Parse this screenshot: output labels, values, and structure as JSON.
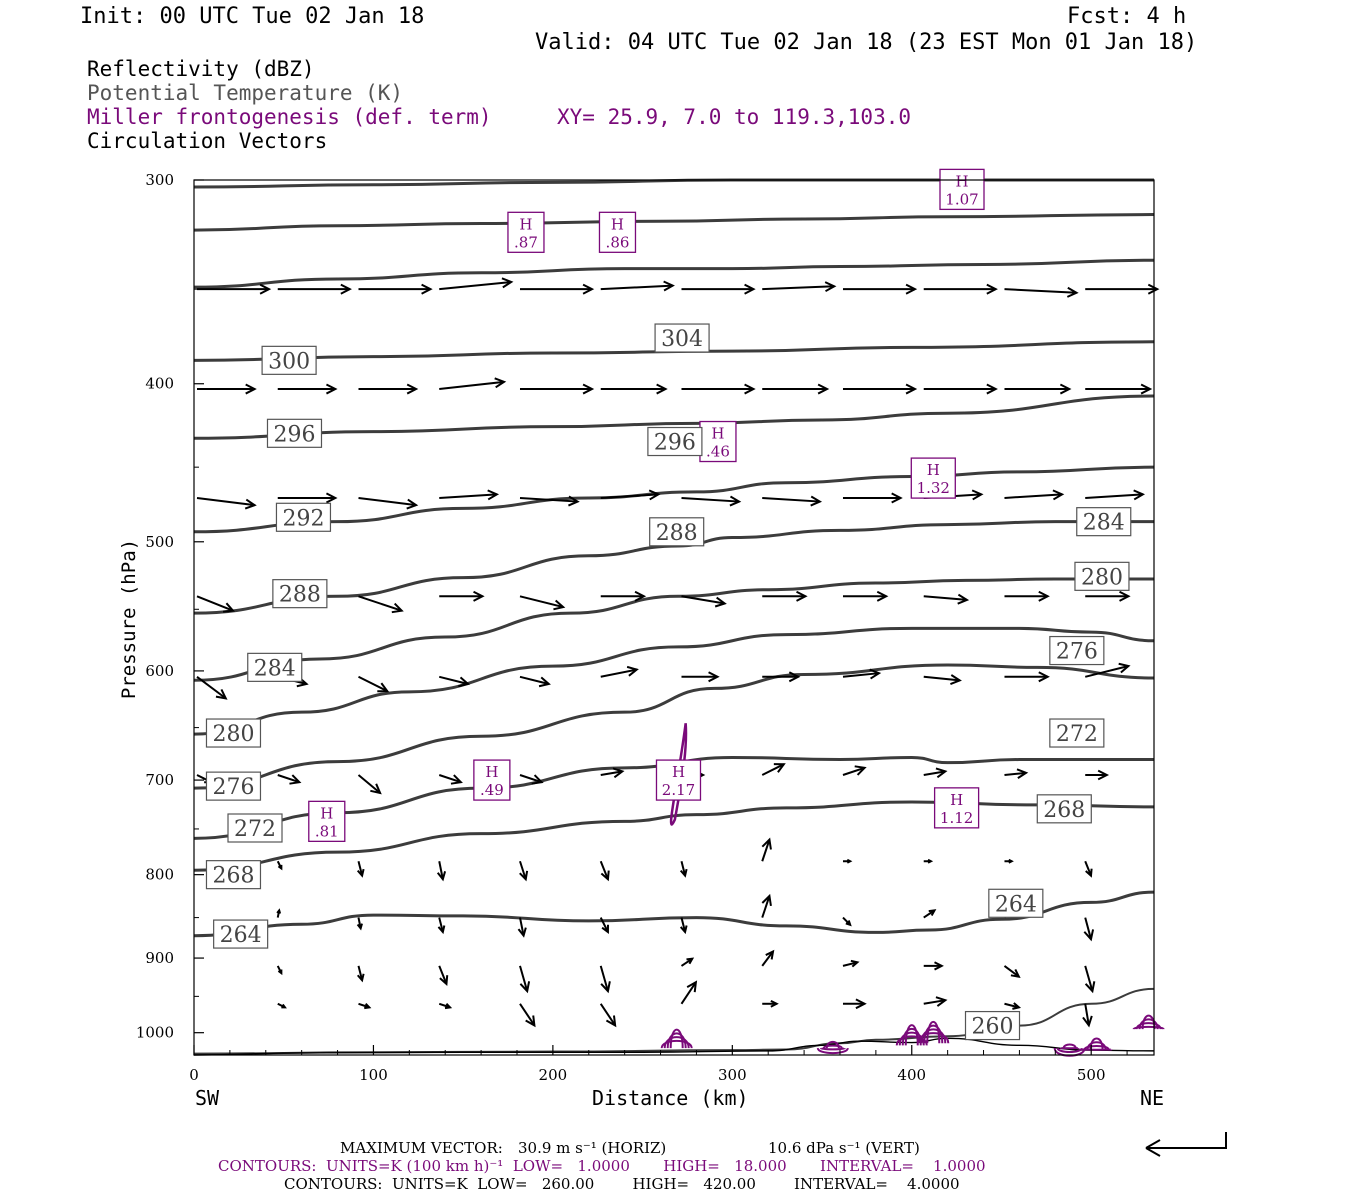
{
  "header": {
    "init": "Init: 00 UTC Tue 02 Jan 18",
    "fcst": "Fcst:    4 h",
    "valid": "Valid: 04 UTC Tue 02 Jan 18 (23 EST Mon 01 Jan 18)"
  },
  "legend": {
    "line1": "Reflectivity (dBZ)",
    "line2": "Potential Temperature (K)",
    "line3": "Miller frontogenesis (def. term)",
    "xy": "XY=  25.9,  7.0 to 119.3,103.0",
    "line4": "Circulation Vectors"
  },
  "colors": {
    "theta": "#3c3c3c",
    "fronto": "#7a0a7a",
    "vector": "#000000"
  },
  "chart_data": {
    "type": "cross-section",
    "xlabel": "Distance (km)",
    "ylabel": "Pressure (hPa)",
    "xlim": [
      0,
      535
    ],
    "ylim": [
      1032,
      300
    ],
    "y_scale": "log",
    "x_ticks": [
      0,
      100,
      200,
      300,
      400,
      500
    ],
    "y_ticks": [
      300,
      400,
      500,
      600,
      700,
      800,
      900,
      1000
    ],
    "x_end_labels": {
      "left": "SW",
      "right": "NE"
    },
    "theta_contours": [
      {
        "level": 304,
        "pts": [
          [
            0,
            303
          ],
          [
            100,
            302
          ],
          [
            200,
            301
          ],
          [
            300,
            300
          ],
          [
            400,
            300
          ],
          [
            535,
            300
          ]
        ]
      },
      {
        "level": 304,
        "pts": [
          [
            0,
            322
          ],
          [
            80,
            320
          ],
          [
            160,
            319
          ],
          [
            260,
            318
          ],
          [
            340,
            317
          ],
          [
            420,
            316
          ],
          [
            535,
            315
          ]
        ]
      },
      {
        "level": 300,
        "pts": [
          [
            0,
            349
          ],
          [
            80,
            345
          ],
          [
            160,
            342
          ],
          [
            240,
            340
          ],
          [
            300,
            340
          ],
          [
            360,
            339
          ],
          [
            440,
            338
          ],
          [
            535,
            336
          ]
        ]
      },
      {
        "level": 300,
        "pts": [
          [
            0,
            387
          ],
          [
            100,
            385
          ],
          [
            200,
            383
          ],
          [
            300,
            382
          ],
          [
            400,
            380
          ],
          [
            535,
            377
          ]
        ]
      },
      {
        "level": 296,
        "pts": [
          [
            0,
            432
          ],
          [
            100,
            428
          ],
          [
            200,
            425
          ],
          [
            280,
            423
          ],
          [
            350,
            421
          ],
          [
            420,
            417
          ],
          [
            535,
            407
          ]
        ]
      },
      {
        "level": 292,
        "pts": [
          [
            0,
            493
          ],
          [
            80,
            486
          ],
          [
            150,
            477
          ],
          [
            220,
            470
          ],
          [
            280,
            466
          ],
          [
            330,
            460
          ],
          [
            400,
            456
          ],
          [
            460,
            453
          ],
          [
            535,
            450
          ]
        ]
      },
      {
        "level": 288,
        "pts": [
          [
            0,
            553
          ],
          [
            80,
            540
          ],
          [
            150,
            526
          ],
          [
            220,
            510
          ],
          [
            270,
            503
          ],
          [
            300,
            497
          ],
          [
            360,
            492
          ],
          [
            420,
            488
          ],
          [
            480,
            486
          ],
          [
            535,
            486
          ]
        ]
      },
      {
        "level": 284,
        "pts": [
          [
            0,
            608
          ],
          [
            70,
            590
          ],
          [
            140,
            572
          ],
          [
            210,
            553
          ],
          [
            270,
            540
          ],
          [
            320,
            535
          ],
          [
            380,
            530
          ],
          [
            430,
            528
          ],
          [
            480,
            527
          ],
          [
            535,
            527
          ]
        ]
      },
      {
        "level": 280,
        "pts": [
          [
            0,
            656
          ],
          [
            60,
            636
          ],
          [
            120,
            618
          ],
          [
            200,
            596
          ],
          [
            270,
            580
          ],
          [
            330,
            570
          ],
          [
            400,
            565
          ],
          [
            460,
            565
          ],
          [
            500,
            568
          ],
          [
            535,
            575
          ]
        ]
      },
      {
        "level": 276,
        "pts": [
          [
            0,
            708
          ],
          [
            80,
            682
          ],
          [
            160,
            658
          ],
          [
            240,
            636
          ],
          [
            290,
            615
          ],
          [
            340,
            603
          ],
          [
            420,
            595
          ],
          [
            470,
            597
          ],
          [
            535,
            606
          ]
        ]
      },
      {
        "level": 272,
        "pts": [
          [
            0,
            760
          ],
          [
            80,
            733
          ],
          [
            160,
            708
          ],
          [
            240,
            688
          ],
          [
            300,
            678
          ],
          [
            360,
            680
          ],
          [
            400,
            678
          ],
          [
            420,
            683
          ],
          [
            460,
            680
          ],
          [
            535,
            680
          ]
        ]
      },
      {
        "level": 268,
        "pts": [
          [
            0,
            795
          ],
          [
            80,
            775
          ],
          [
            160,
            755
          ],
          [
            240,
            742
          ],
          [
            280,
            735
          ],
          [
            330,
            728
          ],
          [
            400,
            722
          ],
          [
            470,
            725
          ],
          [
            535,
            727
          ]
        ]
      },
      {
        "level": 264,
        "pts": [
          [
            0,
            872
          ],
          [
            60,
            858
          ],
          [
            100,
            847
          ],
          [
            150,
            848
          ],
          [
            220,
            854
          ],
          [
            280,
            850
          ],
          [
            330,
            860
          ],
          [
            380,
            868
          ],
          [
            410,
            865
          ],
          [
            450,
            852
          ],
          [
            500,
            832
          ],
          [
            535,
            820
          ]
        ]
      },
      {
        "level": 260,
        "pts": [
          [
            0,
            1030
          ],
          [
            100,
            1028
          ],
          [
            200,
            1027
          ],
          [
            300,
            1025
          ],
          [
            330,
            1024
          ],
          [
            360,
            1015
          ],
          [
            380,
            1010
          ],
          [
            420,
            1005
          ],
          [
            460,
            990
          ],
          [
            500,
            960
          ],
          [
            535,
            940
          ]
        ]
      }
    ],
    "theta_labels": [
      {
        "text": "300",
        "x": 53,
        "p": 387
      },
      {
        "text": "304",
        "x": 272,
        "p": 375
      },
      {
        "text": "296",
        "x": 56,
        "p": 429
      },
      {
        "text": "296",
        "x": 268,
        "p": 434
      },
      {
        "text": "292",
        "x": 61,
        "p": 483
      },
      {
        "text": "288",
        "x": 269,
        "p": 493
      },
      {
        "text": "284",
        "x": 507,
        "p": 486
      },
      {
        "text": "288",
        "x": 59,
        "p": 538
      },
      {
        "text": "280",
        "x": 506,
        "p": 525
      },
      {
        "text": "284",
        "x": 45,
        "p": 597
      },
      {
        "text": "276",
        "x": 492,
        "p": 583
      },
      {
        "text": "280",
        "x": 22,
        "p": 655
      },
      {
        "text": "272",
        "x": 492,
        "p": 655
      },
      {
        "text": "276",
        "x": 22,
        "p": 706
      },
      {
        "text": "268",
        "x": 485,
        "p": 729
      },
      {
        "text": "272",
        "x": 34,
        "p": 749
      },
      {
        "text": "268",
        "x": 22,
        "p": 800
      },
      {
        "text": "264",
        "x": 458,
        "p": 833
      },
      {
        "text": "264",
        "x": 26,
        "p": 870
      },
      {
        "text": "260",
        "x": 445,
        "p": 990
      }
    ],
    "fronto_maxima": [
      {
        "label": "H",
        "value": ".87",
        "x": 185,
        "p": 323
      },
      {
        "label": "H",
        "value": ".86",
        "x": 236,
        "p": 323
      },
      {
        "label": "H",
        "value": "1.07",
        "x": 428,
        "p": 304
      },
      {
        "label": "H",
        "value": ".46",
        "x": 292,
        "p": 434
      },
      {
        "label": "H",
        "value": "1.32",
        "x": 412,
        "p": 457
      },
      {
        "label": "H",
        "value": ".49",
        "x": 166,
        "p": 700
      },
      {
        "label": "H",
        "value": "2.17",
        "x": 270,
        "p": 700
      },
      {
        "label": "H",
        "value": ".81",
        "x": 74,
        "p": 742
      },
      {
        "label": "H",
        "value": "1.12",
        "x": 425,
        "p": 728
      }
    ],
    "vectors": [
      {
        "p": 350,
        "x": [
          0,
          45,
          90,
          135,
          180,
          225,
          270,
          315,
          360,
          405,
          450,
          495
        ],
        "u": [
          1,
          1,
          1,
          1,
          1,
          1,
          1,
          1,
          1,
          1,
          1,
          1
        ],
        "w": [
          0,
          0,
          0,
          0.1,
          0,
          0.05,
          0,
          0.04,
          0,
          0,
          -0.05,
          0
        ]
      },
      {
        "p": 403,
        "x": [
          0,
          45,
          90,
          135,
          180,
          225,
          270,
          315,
          360,
          405,
          450,
          495
        ],
        "u": [
          0.8,
          0.8,
          0.8,
          0.9,
          1,
          0.9,
          1,
          0.9,
          1,
          1,
          0.9,
          0.9
        ],
        "w": [
          0,
          0,
          0,
          0.1,
          0,
          0,
          0,
          0,
          0,
          0,
          0,
          0
        ]
      },
      {
        "p": 470,
        "x": [
          0,
          45,
          90,
          135,
          180,
          225,
          270,
          315,
          360,
          405,
          450,
          495
        ],
        "u": [
          0.8,
          0.8,
          0.8,
          0.8,
          0.8,
          0.8,
          0.8,
          0.8,
          0.8,
          0.8,
          0.8,
          0.8
        ],
        "w": [
          -0.1,
          0,
          -0.1,
          0.05,
          -0.05,
          0.05,
          -0.05,
          -0.05,
          0,
          0.05,
          0.05,
          0.05
        ]
      },
      {
        "p": 540,
        "x": [
          0,
          45,
          90,
          135,
          180,
          225,
          270,
          315,
          360,
          405,
          450,
          495
        ],
        "u": [
          0.5,
          0.6,
          0.6,
          0.6,
          0.6,
          0.6,
          0.6,
          0.6,
          0.6,
          0.6,
          0.6,
          0.6
        ],
        "w": [
          -0.2,
          -0.1,
          -0.2,
          0,
          -0.15,
          0,
          -0.1,
          0,
          0,
          -0.05,
          0,
          0
        ]
      },
      {
        "p": 605,
        "x": [
          0,
          45,
          90,
          135,
          180,
          225,
          270,
          315,
          360,
          405,
          450,
          495
        ],
        "u": [
          0.4,
          0.4,
          0.4,
          0.4,
          0.4,
          0.5,
          0.5,
          0.5,
          0.5,
          0.5,
          0.6,
          0.6
        ],
        "w": [
          -0.3,
          -0.1,
          -0.2,
          -0.1,
          -0.1,
          0.1,
          0,
          0,
          0.05,
          -0.05,
          0,
          0.15
        ]
      },
      {
        "p": 695,
        "x": [
          0,
          45,
          90,
          135,
          180,
          225,
          270,
          315,
          360,
          405,
          450,
          495
        ],
        "u": [
          0.2,
          0.3,
          0.3,
          0.3,
          0.3,
          0.3,
          0.3,
          0.3,
          0.3,
          0.3,
          0.3,
          0.3
        ],
        "w": [
          -0.1,
          -0.1,
          -0.25,
          -0.1,
          -0.1,
          0.05,
          0,
          0.15,
          0.1,
          0.05,
          0.03,
          0
        ]
      },
      {
        "p": 785,
        "x": [
          0,
          45,
          90,
          135,
          180,
          225,
          270,
          315,
          360,
          405,
          450,
          495
        ],
        "u": [
          0,
          0.05,
          0.05,
          0.05,
          0.08,
          0.1,
          0.05,
          0.1,
          0.1,
          0.1,
          0.1,
          0.08
        ],
        "w": [
          0,
          -0.1,
          -0.2,
          -0.25,
          -0.25,
          -0.25,
          -0.2,
          0.3,
          0,
          0,
          0,
          -0.2
        ]
      },
      {
        "p": 850,
        "x": [
          0,
          45,
          90,
          135,
          180,
          225,
          270,
          315,
          360,
          405,
          450,
          495
        ],
        "u": [
          0,
          0.02,
          0.03,
          0.05,
          0.05,
          0.1,
          0.05,
          0.1,
          0.1,
          0.15,
          0.1,
          0.08
        ],
        "w": [
          0,
          0.1,
          -0.15,
          -0.2,
          -0.25,
          -0.2,
          -0.2,
          0.3,
          -0.1,
          0.1,
          0.1,
          -0.3
        ]
      },
      {
        "p": 910,
        "x": [
          0,
          45,
          90,
          135,
          180,
          225,
          270,
          315,
          360,
          405,
          450,
          495
        ],
        "u": [
          0,
          0.05,
          0.05,
          0.1,
          0.1,
          0.1,
          0.15,
          0.15,
          0.2,
          0.25,
          0.2,
          0.1
        ],
        "w": [
          0,
          -0.1,
          -0.2,
          -0.25,
          -0.35,
          -0.35,
          0.1,
          0.2,
          0.05,
          0,
          -0.15,
          -0.35
        ]
      },
      {
        "p": 960,
        "x": [
          0,
          45,
          90,
          135,
          180,
          225,
          270,
          315,
          360,
          405,
          450,
          495
        ],
        "u": [
          0,
          0.1,
          0.15,
          0.15,
          0.2,
          0.2,
          0.2,
          0.2,
          0.3,
          0.3,
          0.2,
          0.05
        ],
        "w": [
          0,
          -0.05,
          -0.05,
          -0.05,
          -0.3,
          -0.3,
          0.3,
          0,
          0,
          0.05,
          -0.05,
          -0.3
        ]
      }
    ],
    "reflectivity_cells": [
      {
        "x": 269,
        "pTop": 987,
        "pBot": 1022
      },
      {
        "x": 400,
        "pTop": 980,
        "pBot": 1018
      },
      {
        "x": 412,
        "pTop": 975,
        "pBot": 1015
      },
      {
        "x": 356,
        "pTop": 1010,
        "pBot": 1022
      },
      {
        "x": 503,
        "pTop": 1003,
        "pBot": 1024
      },
      {
        "x": 488,
        "pTop": 1015,
        "pBot": 1022
      },
      {
        "x": 532,
        "pTop": 970,
        "pBot": 995
      }
    ]
  },
  "footer": {
    "vector_title": "MAXIMUM VECTOR:",
    "vector_horiz": "30.9 m s⁻¹ (HORIZ)",
    "vector_vert": "10.6 dPa s⁻¹ (VERT)",
    "fronto_contours": "CONTOURS:  UNITS=K (100 km h)⁻¹  LOW=   1.0000       HIGH=   18.000       INTERVAL=    1.0000",
    "theta_contours": "CONTOURS:  UNITS=K  LOW=   260.00        HIGH=   420.00        INTERVAL=    4.0000"
  }
}
